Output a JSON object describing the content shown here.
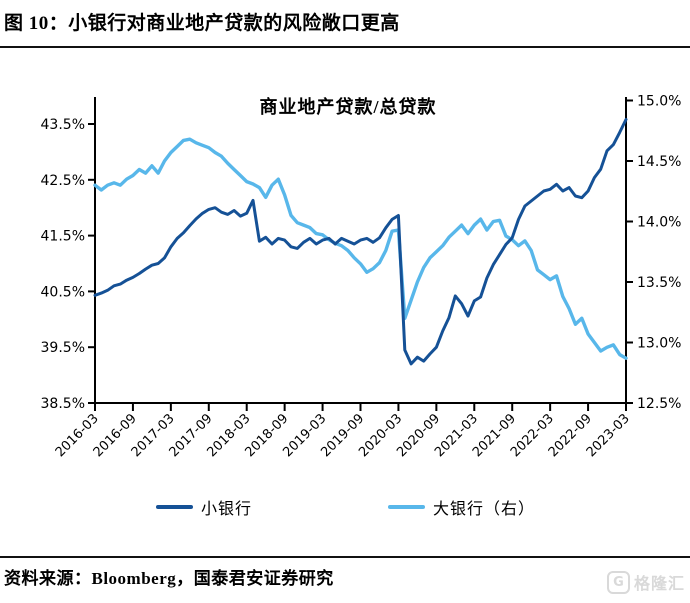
{
  "header": {
    "title": "图 10：小银行对商业地产贷款的风险敞口更高"
  },
  "footer": {
    "source": "资料来源：Bloomberg，国泰君安证券研究",
    "watermark_icon": "G",
    "watermark": "格隆汇"
  },
  "chart_data": {
    "type": "line",
    "title": "商业地产贷款/总贷款",
    "grid": false,
    "legend_position": "bottom",
    "x": [
      "2016-03",
      "2016-04",
      "2016-05",
      "2016-06",
      "2016-07",
      "2016-08",
      "2016-09",
      "2016-10",
      "2016-11",
      "2016-12",
      "2017-01",
      "2017-02",
      "2017-03",
      "2017-04",
      "2017-05",
      "2017-06",
      "2017-07",
      "2017-08",
      "2017-09",
      "2017-10",
      "2017-11",
      "2017-12",
      "2018-01",
      "2018-02",
      "2018-03",
      "2018-04",
      "2018-05",
      "2018-06",
      "2018-07",
      "2018-08",
      "2018-09",
      "2018-10",
      "2018-11",
      "2018-12",
      "2019-01",
      "2019-02",
      "2019-03",
      "2019-04",
      "2019-05",
      "2019-06",
      "2019-07",
      "2019-08",
      "2019-09",
      "2019-10",
      "2019-11",
      "2019-12",
      "2020-01",
      "2020-02",
      "2020-03",
      "2020-04",
      "2020-05",
      "2020-06",
      "2020-07",
      "2020-08",
      "2020-09",
      "2020-10",
      "2020-11",
      "2020-12",
      "2021-01",
      "2021-02",
      "2021-03",
      "2021-04",
      "2021-05",
      "2021-06",
      "2021-07",
      "2021-08",
      "2021-09",
      "2021-10",
      "2021-11",
      "2021-12",
      "2022-01",
      "2022-02",
      "2022-03",
      "2022-04",
      "2022-05",
      "2022-06",
      "2022-07",
      "2022-08",
      "2022-09",
      "2022-10",
      "2022-11",
      "2022-12",
      "2023-01",
      "2023-02",
      "2023-03"
    ],
    "x_tick_labels": [
      "2016-03",
      "2016-09",
      "2017-03",
      "2017-09",
      "2018-03",
      "2018-09",
      "2019-03",
      "2019-09",
      "2020-03",
      "2020-09",
      "2021-03",
      "2021-09",
      "2022-03",
      "2022-09",
      "2023-03"
    ],
    "left_axis": {
      "min": 38.5,
      "max": 43.5,
      "tick_labels": [
        "38.5%",
        "39.5%",
        "40.5%",
        "41.5%",
        "42.5%",
        "43.5%"
      ]
    },
    "right_axis": {
      "min": 12.5,
      "max": 15.0,
      "tick_labels": [
        "12.5%",
        "13.0%",
        "13.5%",
        "14.0%",
        "14.5%",
        "15.0%"
      ]
    },
    "series": [
      {
        "name": "小银行",
        "axis": "left",
        "color": "#155196",
        "values": [
          40.43,
          40.47,
          40.52,
          40.6,
          40.63,
          40.7,
          40.75,
          40.82,
          40.9,
          40.97,
          41.0,
          41.1,
          41.3,
          41.45,
          41.55,
          41.68,
          41.8,
          41.9,
          41.97,
          42.0,
          41.92,
          41.88,
          41.95,
          41.85,
          41.9,
          42.13,
          41.4,
          41.47,
          41.35,
          41.45,
          41.42,
          41.3,
          41.27,
          41.38,
          41.45,
          41.35,
          41.42,
          41.45,
          41.35,
          41.45,
          41.4,
          41.35,
          41.42,
          41.45,
          41.38,
          41.46,
          41.64,
          41.79,
          41.86,
          39.45,
          39.2,
          39.32,
          39.25,
          39.38,
          39.5,
          39.79,
          40.03,
          40.42,
          40.28,
          40.06,
          40.33,
          40.4,
          40.74,
          40.98,
          41.16,
          41.34,
          41.46,
          41.79,
          42.03,
          42.12,
          42.21,
          42.3,
          42.33,
          42.42,
          42.3,
          42.36,
          42.21,
          42.18,
          42.3,
          42.54,
          42.69,
          43.02,
          43.13,
          43.35,
          43.58
        ]
      },
      {
        "name": "大银行（右）",
        "axis": "right",
        "color": "#58B7EA",
        "values": [
          14.3,
          14.26,
          14.3,
          14.32,
          14.3,
          14.35,
          14.38,
          14.43,
          14.4,
          14.46,
          14.4,
          14.5,
          14.57,
          14.62,
          14.67,
          14.68,
          14.65,
          14.63,
          14.61,
          14.57,
          14.54,
          14.48,
          14.43,
          14.38,
          14.33,
          14.31,
          14.28,
          14.2,
          14.3,
          14.35,
          14.22,
          14.05,
          13.99,
          13.97,
          13.95,
          13.9,
          13.89,
          13.85,
          13.82,
          13.8,
          13.76,
          13.7,
          13.65,
          13.58,
          13.61,
          13.66,
          13.76,
          13.92,
          13.93,
          13.2,
          13.35,
          13.5,
          13.62,
          13.7,
          13.75,
          13.8,
          13.87,
          13.92,
          13.97,
          13.9,
          13.97,
          14.02,
          13.93,
          14.0,
          14.01,
          13.88,
          13.85,
          13.8,
          13.84,
          13.76,
          13.6,
          13.56,
          13.52,
          13.55,
          13.38,
          13.28,
          13.15,
          13.2,
          13.07,
          13.0,
          12.93,
          12.96,
          12.98,
          12.9,
          12.87
        ]
      }
    ]
  }
}
